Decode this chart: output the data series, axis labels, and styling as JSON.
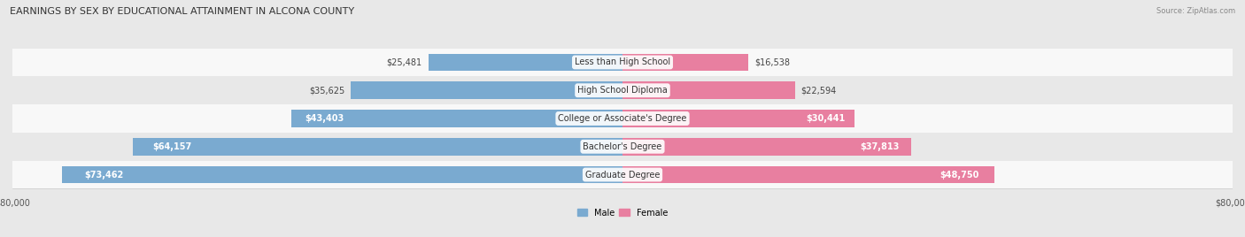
{
  "title": "EARNINGS BY SEX BY EDUCATIONAL ATTAINMENT IN ALCONA COUNTY",
  "source": "Source: ZipAtlas.com",
  "categories": [
    "Less than High School",
    "High School Diploma",
    "College or Associate's Degree",
    "Bachelor's Degree",
    "Graduate Degree"
  ],
  "male_values": [
    25481,
    35625,
    43403,
    64157,
    73462
  ],
  "female_values": [
    16538,
    22594,
    30441,
    37813,
    48750
  ],
  "male_color": "#7aaad0",
  "female_color": "#e87fa0",
  "male_label": "Male",
  "female_label": "Female",
  "xlim": 80000,
  "bar_height": 0.62,
  "background_color": "#e8e8e8",
  "row_bg_light": "#f8f8f8",
  "row_bg_dark": "#e8e8e8",
  "label_fontsize": 7.0,
  "title_fontsize": 8.0,
  "axis_fontsize": 7.0,
  "category_fontsize": 7.0
}
